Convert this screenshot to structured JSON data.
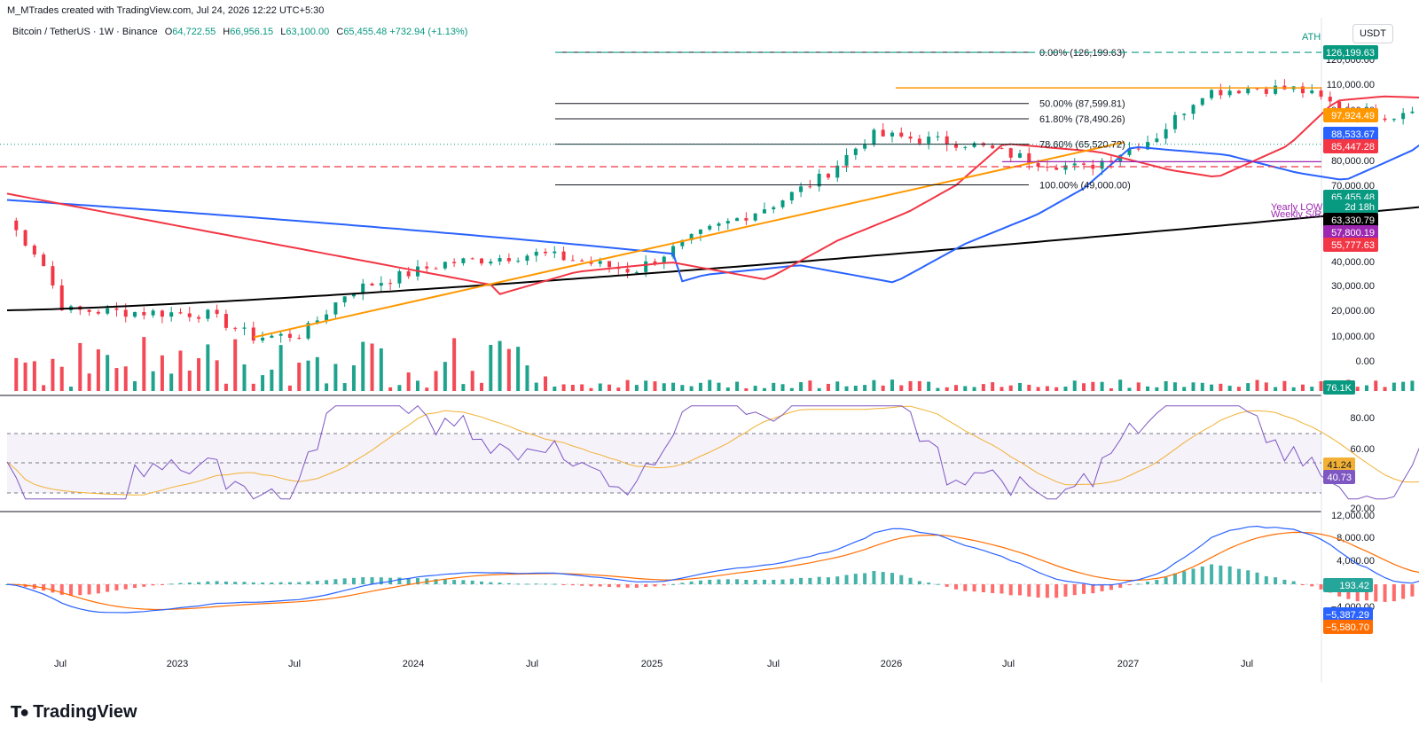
{
  "attribution": "M_MTrades created with TradingView.com, Jul 24, 2026 12:22 UTC+5:30",
  "legend": {
    "symbol": "Bitcoin / TetherUS · 1W · Binance",
    "o_label": "O",
    "o": "64,722.55",
    "h_label": "H",
    "h": "66,956.15",
    "l_label": "L",
    "l": "63,100.00",
    "c_label": "C",
    "c": "65,455.48",
    "change": "+732.94 (+1.13%)"
  },
  "currency": "USDT",
  "logo": "TradingView",
  "chart_data": [
    {
      "type": "candlestick",
      "title": "Bitcoin / TetherUS · 1W · Binance",
      "y_ticks": [
        "120,000.00",
        "110,000.00",
        "100,000.00",
        "80,000.00",
        "70,000.00",
        "40,000.00",
        "30,000.00",
        "20,000.00",
        "10,000.00",
        "0.00"
      ],
      "x_ticks": [
        "Jul",
        "2023",
        "Jul",
        "2024",
        "Jul",
        "2025",
        "Jul",
        "2026",
        "Jul",
        "2027",
        "Jul"
      ],
      "fibonacci": [
        {
          "label": "0.00% (126,199.63)",
          "value": 126199.63
        },
        {
          "label": "50.00% (87,599.81)",
          "value": 87599.81
        },
        {
          "label": "61.80% (78,490.26)",
          "value": 78490.26
        },
        {
          "label": "78.60% (65,520.72)",
          "value": 65520.72
        },
        {
          "label": "100.00% (49,000.00)",
          "value": 49000
        }
      ],
      "annotations": [
        "ATH",
        "Yearly LOW",
        "Weekly S/R"
      ],
      "price_tags": [
        {
          "text": "97,924.49",
          "color": "#ff9800",
          "value": 97924.49
        },
        {
          "text": "88,533.67",
          "color": "#2962ff",
          "value": 88533.67
        },
        {
          "text": "85,447.28",
          "color": "#f23645",
          "value": 85447.28
        },
        {
          "text": "65,455.48",
          "color": "#089981",
          "value": 65455.48
        },
        {
          "text": "2d 18h",
          "color": "#089981",
          "value": null
        },
        {
          "text": "63,330.79",
          "color": "#000000",
          "value": 63330.79
        },
        {
          "text": "57,800.19",
          "color": "#9c27b0",
          "value": 57800.19
        },
        {
          "text": "55,777.63",
          "color": "#f23645",
          "value": 55777.63
        }
      ],
      "ath_tag": "126,199.63",
      "volume_tag": "76.1K",
      "colors": {
        "up": "#089981",
        "down": "#f23645",
        "ma50": "#f23645",
        "ma100": "#2962ff",
        "ma200": "#000000",
        "trend": "#ff9800",
        "support": "#9c27b0"
      }
    },
    {
      "type": "line",
      "title": "RSI",
      "y_ticks": [
        "80.00",
        "60.00",
        "20.00"
      ],
      "series": [
        {
          "value_tag": "41.24",
          "color": "#f2b134"
        },
        {
          "value_tag": "40.73",
          "color": "#7e57c2"
        }
      ]
    },
    {
      "type": "histogram",
      "title": "MACD",
      "y_ticks": [
        "12,000.00",
        "8,000.00",
        "4,000.00",
        "−4,000.00"
      ],
      "tags": [
        {
          "text": "193.42",
          "color": "#26a69a"
        },
        {
          "text": "−5,387.29",
          "color": "#2962ff"
        },
        {
          "text": "−5,580.70",
          "color": "#ff6d00"
        }
      ]
    }
  ]
}
